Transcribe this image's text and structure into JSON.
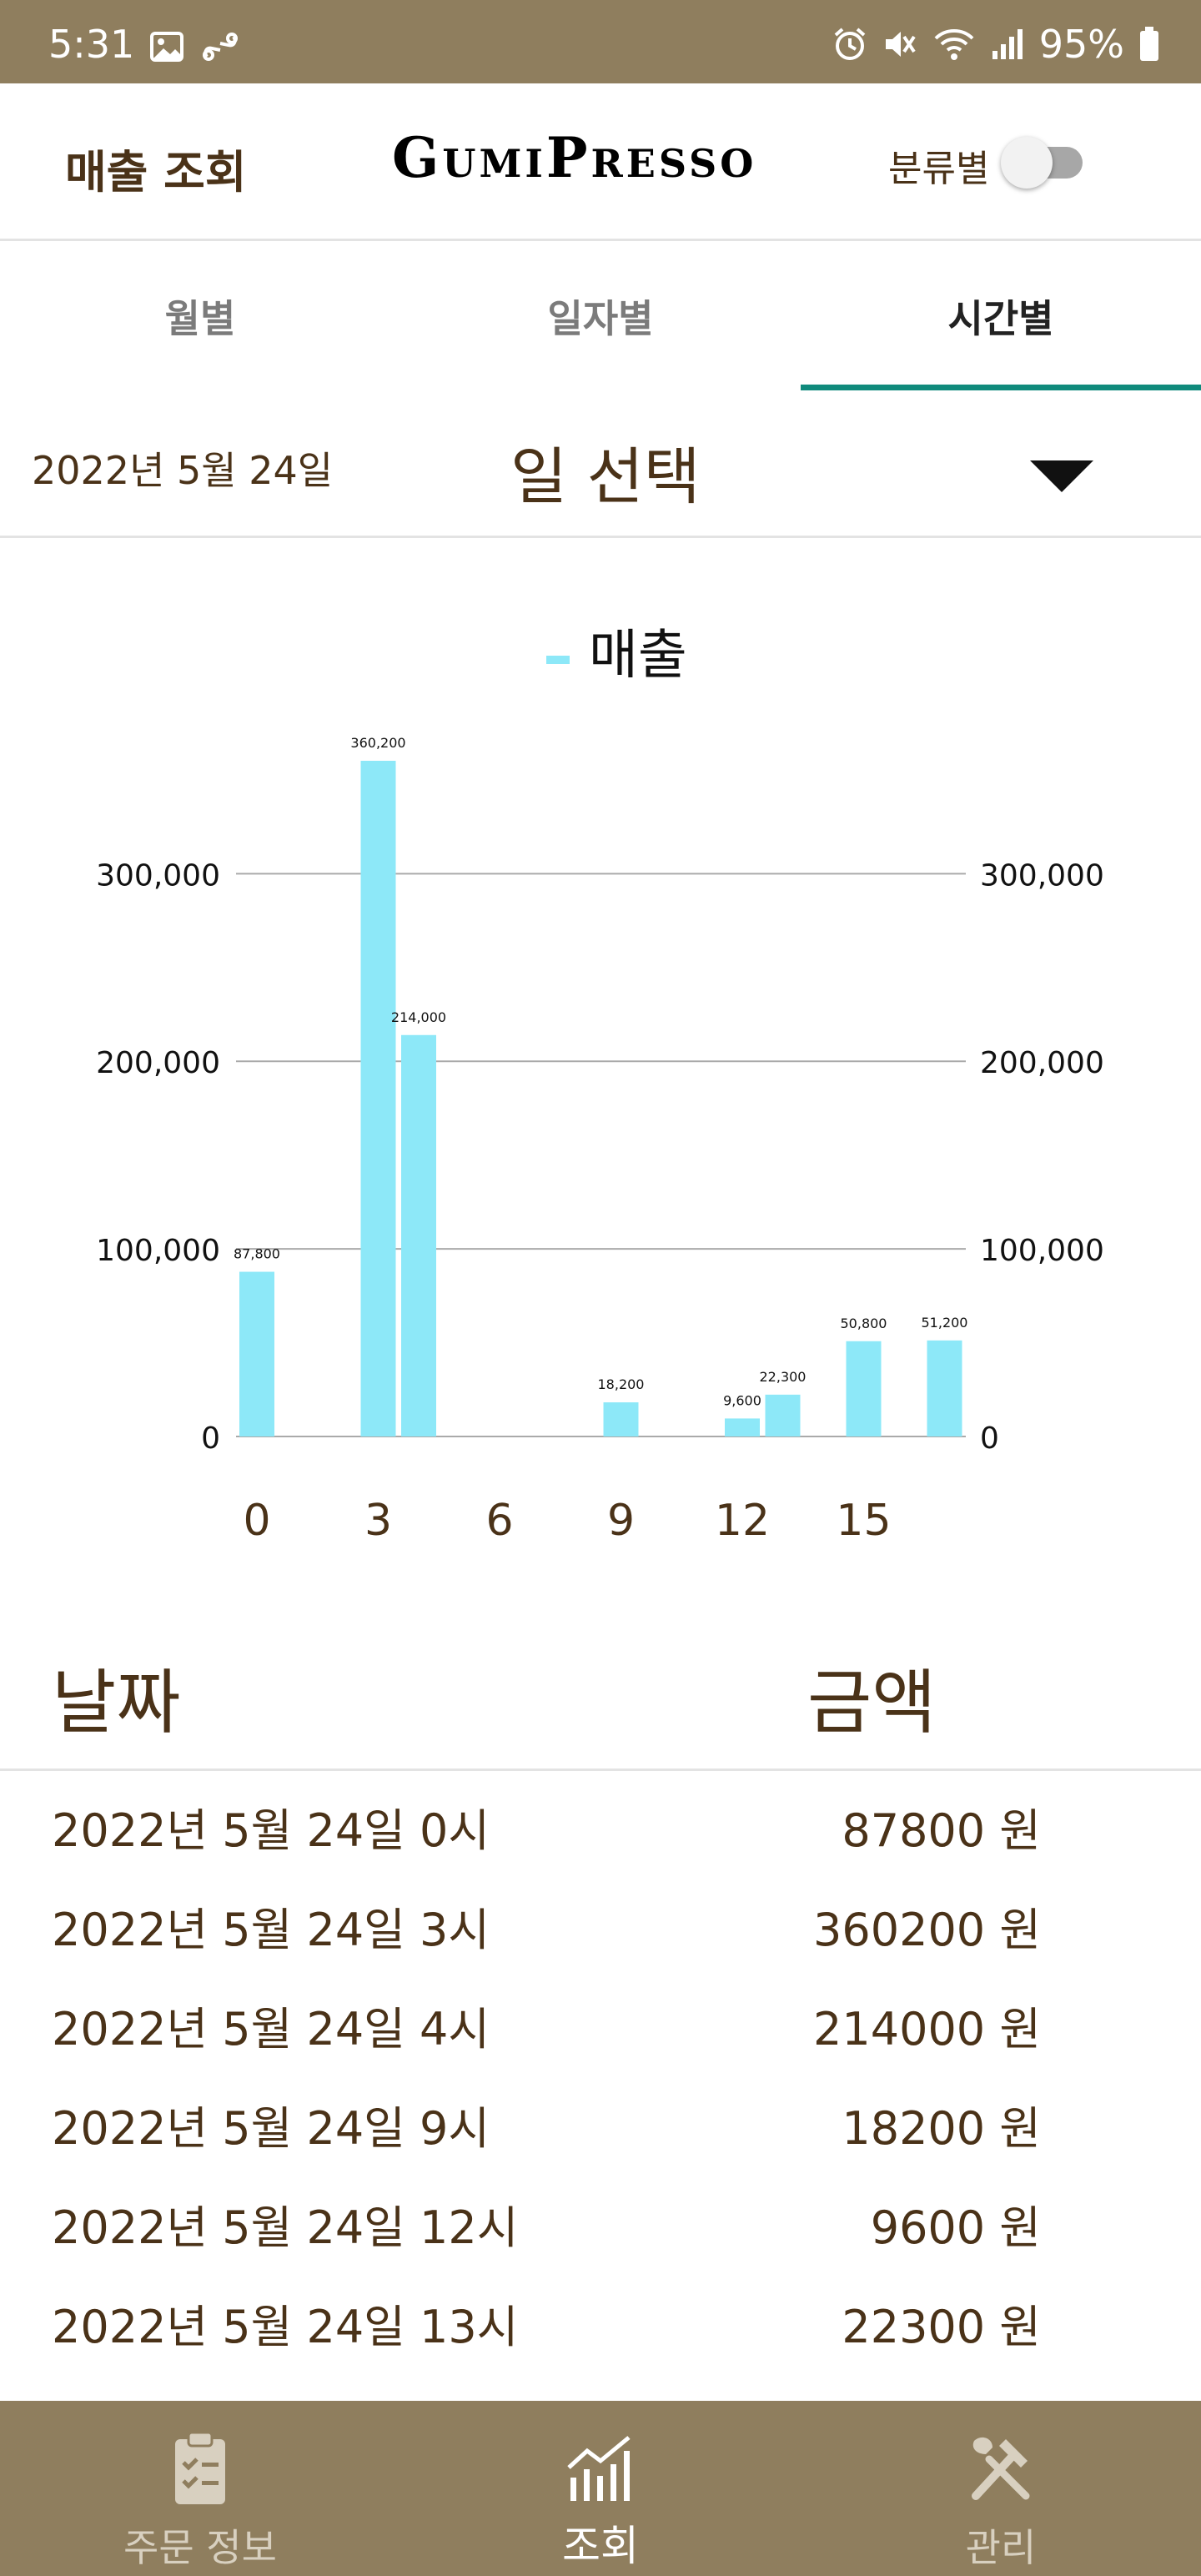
{
  "status_bar": {
    "time": "5:31",
    "battery": "95%",
    "icons": [
      "image-icon",
      "link-icon",
      "alarm-icon",
      "mute-icon",
      "wifi-icon",
      "signal-icon",
      "battery-icon"
    ]
  },
  "app_bar": {
    "title": "매출 조회",
    "logo": "GumiPresso",
    "toggle_label": "분류별",
    "toggle_on": false
  },
  "tabs": [
    {
      "label": "월별",
      "active": false
    },
    {
      "label": "일자별",
      "active": false
    },
    {
      "label": "시간별",
      "active": true
    }
  ],
  "date_row": {
    "date": "2022년 5월 24일",
    "select_label": "일 선택"
  },
  "chart_data": {
    "type": "bar",
    "legend": "매출",
    "legend_position": "top-center",
    "color": "#8de8f8",
    "x": [
      0,
      3,
      4,
      9,
      12,
      13,
      15,
      17
    ],
    "values": [
      87800,
      360200,
      214000,
      18200,
      9600,
      22300,
      50800,
      51200
    ],
    "value_labels": [
      "87,800",
      "360,200",
      "214,000",
      "18,200",
      "9,600",
      "22,300",
      "50,800",
      "51,200"
    ],
    "x_ticks": [
      "0",
      "3",
      "6",
      "9",
      "12",
      "15"
    ],
    "y_ticks": [
      "0",
      "100,000",
      "200,000",
      "300,000"
    ],
    "ylim": [
      0,
      360200
    ],
    "grid": true
  },
  "list": {
    "header_date": "날짜",
    "header_amount": "금액",
    "rows": [
      {
        "date": "2022년 5월 24일 0시",
        "amount": "87800 원"
      },
      {
        "date": "2022년 5월 24일 3시",
        "amount": "360200 원"
      },
      {
        "date": "2022년 5월 24일 4시",
        "amount": "214000 원"
      },
      {
        "date": "2022년 5월 24일 9시",
        "amount": "18200 원"
      },
      {
        "date": "2022년 5월 24일 12시",
        "amount": "9600 원"
      },
      {
        "date": "2022년 5월 24일 13시",
        "amount": "22300 원"
      }
    ]
  },
  "bottom_nav": [
    {
      "label": "주문 정보",
      "icon": "clipboard-icon",
      "active": false
    },
    {
      "label": "조회",
      "icon": "chart-icon",
      "active": true
    },
    {
      "label": "관리",
      "icon": "tools-icon",
      "active": false
    }
  ]
}
